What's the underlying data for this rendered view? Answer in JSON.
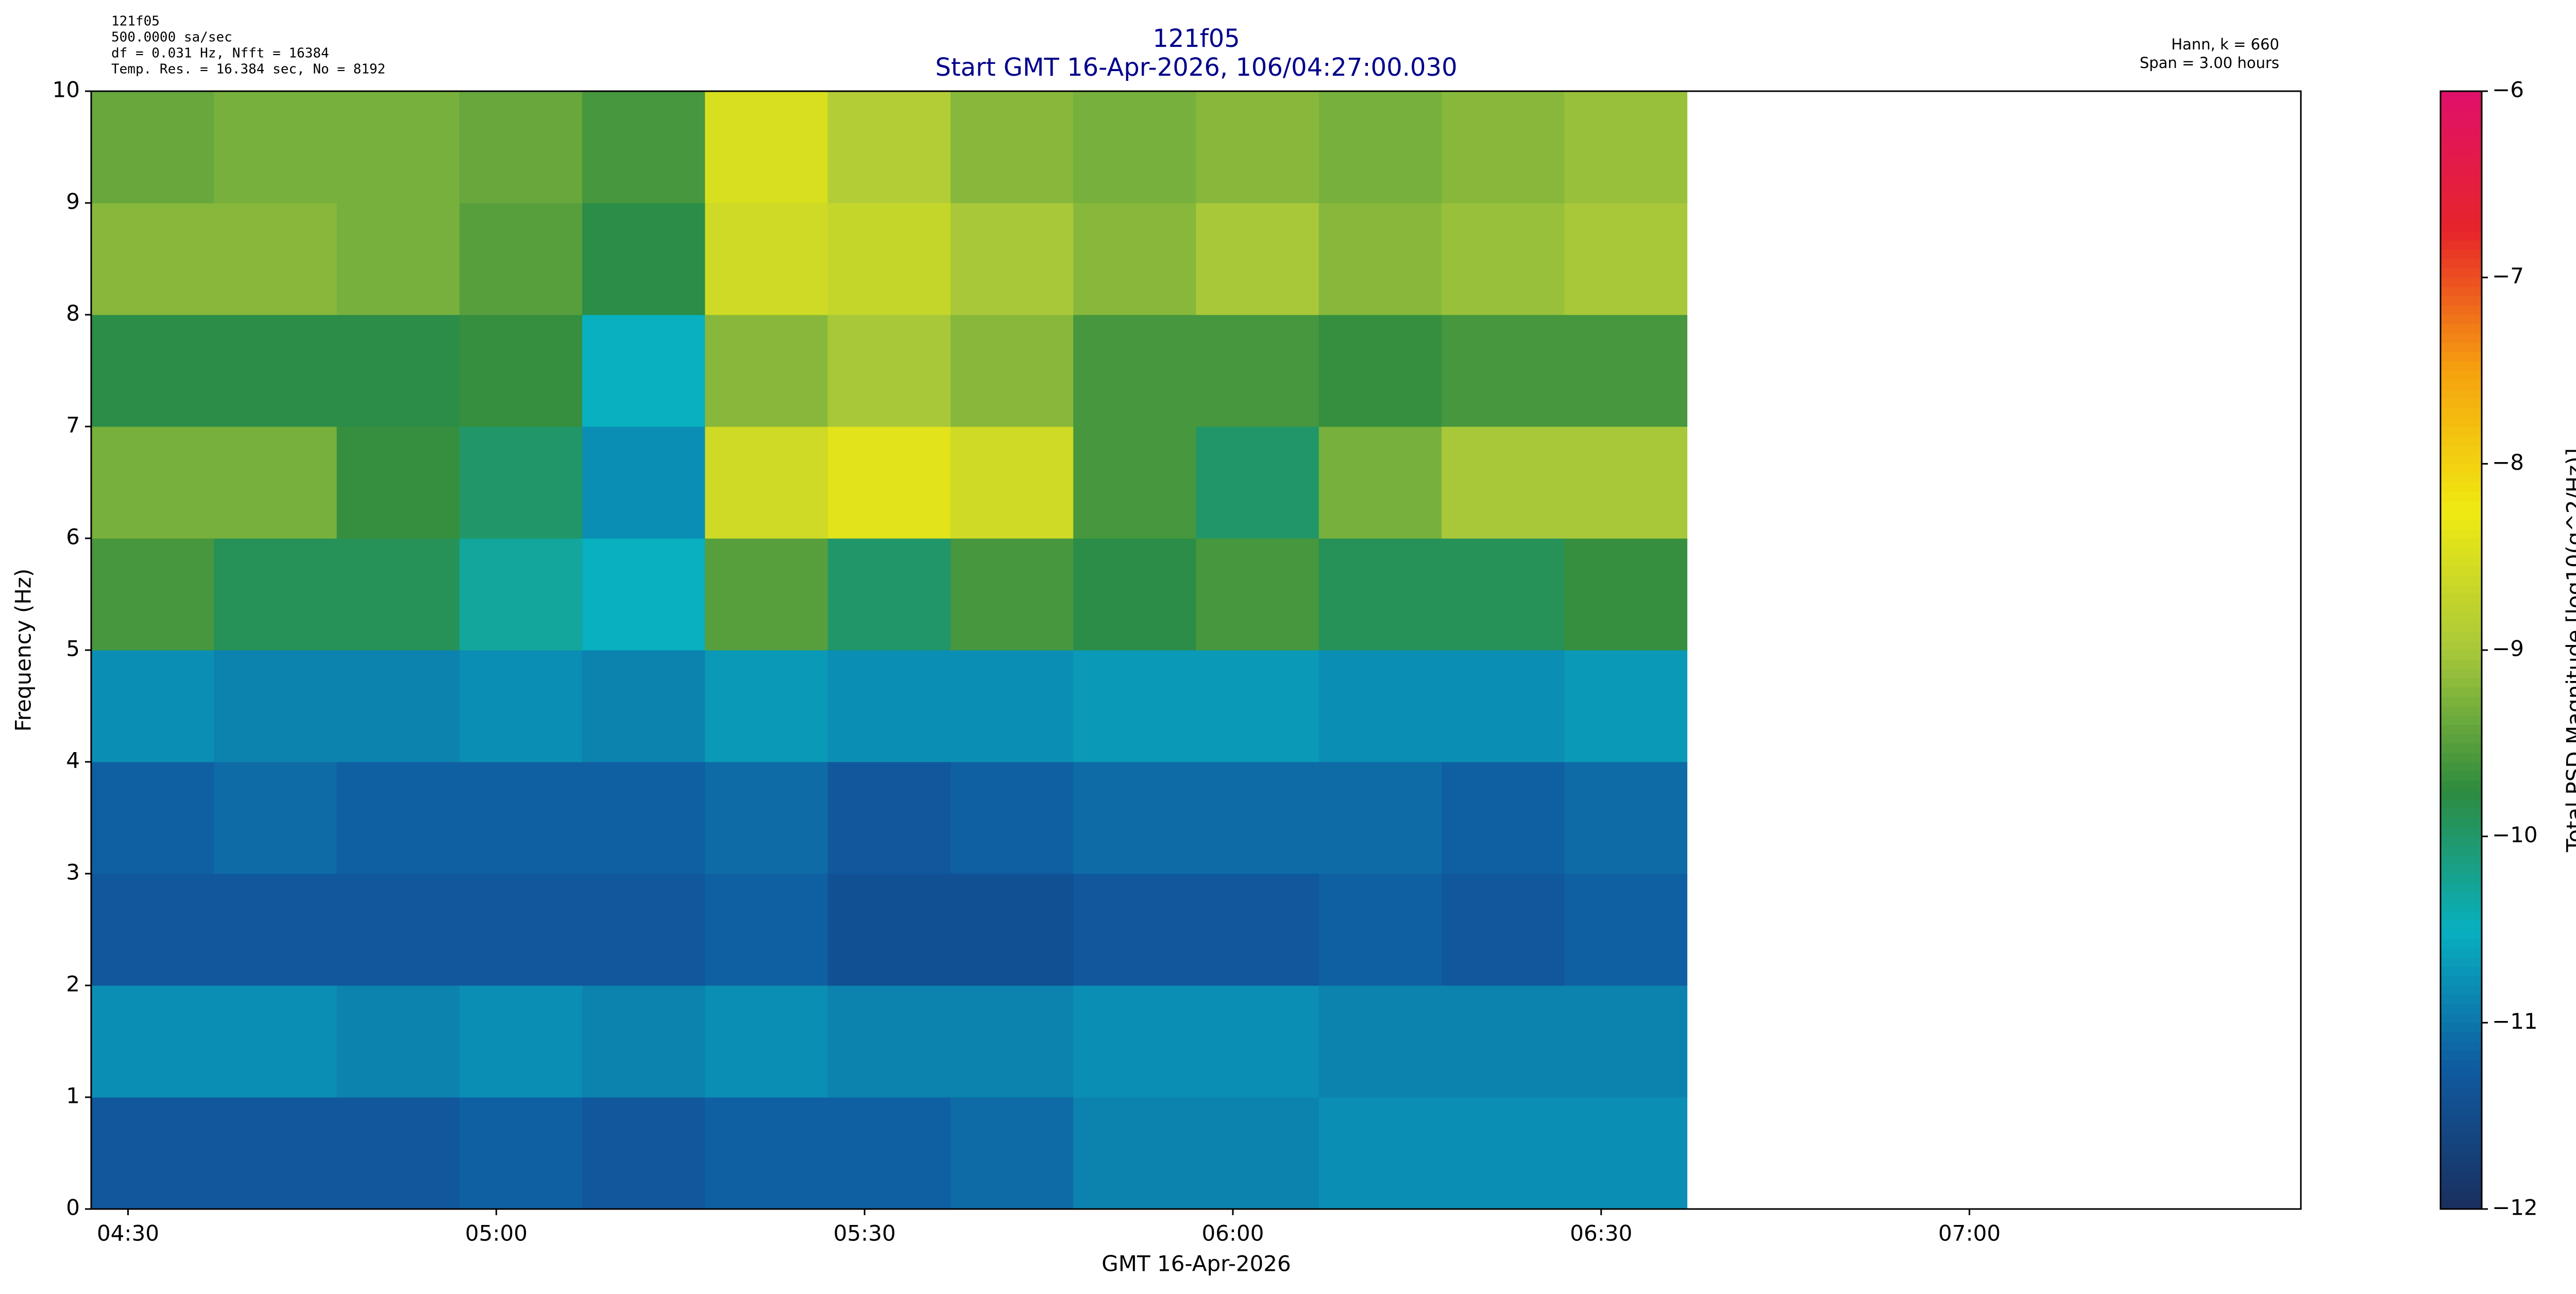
{
  "chart_data": {
    "type": "heatmap",
    "title": "121f05",
    "subtitle": "Start GMT 16-Apr-2026, 106/04:27:00.030",
    "info_left": [
      "121f05",
      "500.0000 sa/sec",
      "df = 0.031 Hz,  Nfft = 16384",
      "Temp. Res. = 16.384 sec, No = 8192"
    ],
    "info_right": [
      "Hann, k = 660",
      "Span = 3.00 hours"
    ],
    "xlabel": "GMT 16-Apr-2026",
    "ylabel": "Frequency (Hz)",
    "colorbar_label": "Total PSD Magnitude [log10(g^2/Hz)]",
    "x_edges": [
      "04:27",
      "04:37",
      "04:47",
      "04:57",
      "05:07",
      "05:17",
      "05:27",
      "05:37",
      "05:47",
      "05:57",
      "06:07",
      "06:17",
      "06:27",
      "06:37"
    ],
    "y_edges": [
      0,
      1,
      2,
      3,
      4,
      5,
      6,
      7,
      8,
      9,
      10
    ],
    "z": [
      [
        -11.3,
        -11.3,
        -11.3,
        -11.2,
        -11.3,
        -11.2,
        -11.2,
        -11.1,
        -10.9,
        -10.9,
        -10.8,
        -10.8,
        -10.8
      ],
      [
        -10.8,
        -10.8,
        -10.9,
        -10.8,
        -10.9,
        -10.8,
        -10.9,
        -10.9,
        -10.8,
        -10.8,
        -10.9,
        -10.9,
        -10.9
      ],
      [
        -11.3,
        -11.3,
        -11.3,
        -11.3,
        -11.3,
        -11.2,
        -11.4,
        -11.4,
        -11.3,
        -11.3,
        -11.2,
        -11.3,
        -11.2
      ],
      [
        -11.2,
        -11.1,
        -11.2,
        -11.2,
        -11.2,
        -11.1,
        -11.3,
        -11.2,
        -11.1,
        -11.1,
        -11.1,
        -11.2,
        -11.1
      ],
      [
        -10.8,
        -10.9,
        -10.9,
        -10.8,
        -10.9,
        -10.7,
        -10.8,
        -10.8,
        -10.7,
        -10.7,
        -10.8,
        -10.8,
        -10.7
      ],
      [
        -9.6,
        -9.9,
        -9.9,
        -10.3,
        -10.5,
        -9.5,
        -10.0,
        -9.6,
        -9.8,
        -9.6,
        -9.9,
        -9.9,
        -9.7
      ],
      [
        -9.3,
        -9.3,
        -9.7,
        -10.0,
        -10.8,
        -8.6,
        -8.4,
        -8.6,
        -9.6,
        -10.0,
        -9.3,
        -9.0,
        -9.0
      ],
      [
        -9.8,
        -9.8,
        -9.8,
        -9.7,
        -10.5,
        -9.2,
        -9.0,
        -9.2,
        -9.6,
        -9.6,
        -9.7,
        -9.6,
        -9.6
      ],
      [
        -9.2,
        -9.2,
        -9.3,
        -9.5,
        -9.8,
        -8.6,
        -8.7,
        -9.0,
        -9.2,
        -9.0,
        -9.2,
        -9.1,
        -9.0
      ],
      [
        -9.4,
        -9.3,
        -9.3,
        -9.4,
        -9.6,
        -8.5,
        -8.9,
        -9.2,
        -9.3,
        -9.2,
        -9.3,
        -9.2,
        -9.1
      ]
    ],
    "xlim": [
      "04:27",
      "07:27"
    ],
    "xticks": [
      "04:30",
      "05:00",
      "05:30",
      "06:00",
      "06:30",
      "07:00"
    ],
    "ylim": [
      0,
      10
    ],
    "yticks": [
      0,
      1,
      2,
      3,
      4,
      5,
      6,
      7,
      8,
      9,
      10
    ],
    "zlim": [
      -12,
      -6
    ],
    "zticks": [
      {
        "value": -12,
        "label": "−12"
      },
      {
        "value": -11,
        "label": "−11"
      },
      {
        "value": -10,
        "label": "−10"
      },
      {
        "value": -9,
        "label": "−9"
      },
      {
        "value": -8,
        "label": "−8"
      },
      {
        "value": -7,
        "label": "−7"
      },
      {
        "value": -6,
        "label": "−6"
      }
    ],
    "colorscale": [
      "#1a2f5e",
      "#0f5aa0",
      "#08b0c0",
      "#2e8b3e",
      "#a8c83a",
      "#f0ea12",
      "#f6a20e",
      "#e6252a",
      "#e0106a"
    ]
  }
}
